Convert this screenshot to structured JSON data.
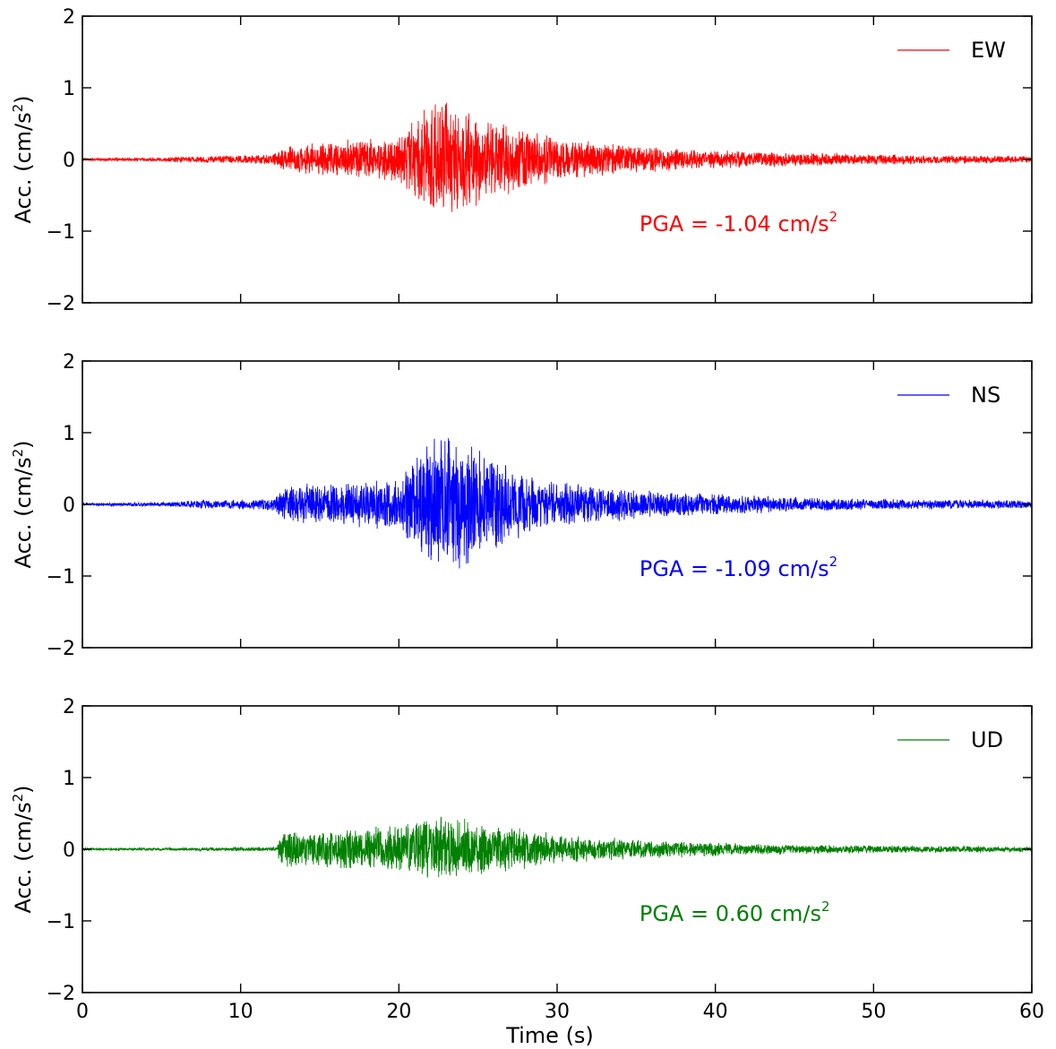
{
  "chart_data": [
    {
      "type": "line",
      "series": [
        {
          "name": "EW",
          "color": "#ff0000",
          "envelope": {
            "t": [
              0,
              5,
              7.5,
              10,
              12,
              13,
              15,
              18,
              20,
              21.5,
              22.5,
              23.5,
              24.5,
              26,
              28,
              30,
              35,
              40,
              45,
              50,
              55,
              60
            ],
            "amp": [
              0.02,
              0.03,
              0.05,
              0.06,
              0.08,
              0.2,
              0.25,
              0.32,
              0.38,
              0.7,
              0.95,
              0.8,
              0.75,
              0.6,
              0.45,
              0.32,
              0.2,
              0.14,
              0.1,
              0.08,
              0.06,
              0.05
            ]
          }
        }
      ],
      "annotation": {
        "text": "PGA = -1.04 cm/s",
        "superscript": "2",
        "color": "#ff0000"
      },
      "ylabel": "Acc. (cm/s",
      "ylabel_sup": "2",
      "ylabel_close": ")",
      "xlim": [
        0,
        60
      ],
      "ylim": [
        -2,
        2
      ],
      "xticks": [
        0,
        10,
        20,
        30,
        40,
        50,
        60
      ],
      "yticks": [
        -2,
        -1,
        0,
        1,
        2
      ],
      "ytick_labels": [
        "−2",
        "−1",
        "0",
        "1",
        "2"
      ],
      "show_xtick_labels": false,
      "legend": "top-right",
      "grid": false
    },
    {
      "type": "line",
      "series": [
        {
          "name": "NS",
          "color": "#0000ff",
          "envelope": {
            "t": [
              0,
              5,
              7.5,
              10,
              12,
              13,
              15,
              18,
              20,
              21,
              22,
              23.5,
              25,
              26.5,
              28,
              30,
              35,
              40,
              45,
              50,
              55,
              60
            ],
            "amp": [
              0.02,
              0.03,
              0.07,
              0.07,
              0.09,
              0.28,
              0.3,
              0.33,
              0.38,
              0.75,
              1.0,
              1.0,
              0.8,
              0.6,
              0.45,
              0.33,
              0.22,
              0.15,
              0.11,
              0.08,
              0.07,
              0.06
            ]
          }
        }
      ],
      "annotation": {
        "text": "PGA = -1.09 cm/s",
        "superscript": "2",
        "color": "#0000ff"
      },
      "ylabel": "Acc. (cm/s",
      "ylabel_sup": "2",
      "ylabel_close": ")",
      "xlim": [
        0,
        60
      ],
      "ylim": [
        -2,
        2
      ],
      "xticks": [
        0,
        10,
        20,
        30,
        40,
        50,
        60
      ],
      "yticks": [
        -2,
        -1,
        0,
        1,
        2
      ],
      "ytick_labels": [
        "−2",
        "−1",
        "0",
        "1",
        "2"
      ],
      "show_xtick_labels": false,
      "legend": "top-right",
      "grid": false
    },
    {
      "type": "line",
      "series": [
        {
          "name": "UD",
          "color": "#008000",
          "envelope": {
            "t": [
              0,
              5,
              10,
              12.3,
              12.5,
              14,
              17,
              20,
              21.5,
              22.5,
              24,
              26,
              28,
              30,
              35,
              40,
              45,
              50,
              55,
              60
            ],
            "amp": [
              0.02,
              0.02,
              0.03,
              0.03,
              0.25,
              0.26,
              0.3,
              0.35,
              0.5,
              0.55,
              0.45,
              0.35,
              0.3,
              0.22,
              0.14,
              0.1,
              0.07,
              0.06,
              0.05,
              0.04
            ]
          }
        }
      ],
      "annotation": {
        "text": "PGA =  0.60 cm/s",
        "superscript": "2",
        "color": "#008000"
      },
      "ylabel": "Acc. (cm/s",
      "ylabel_sup": "2",
      "ylabel_close": ")",
      "xlabel": "Time (s)",
      "xlim": [
        0,
        60
      ],
      "ylim": [
        -2,
        2
      ],
      "xticks": [
        0,
        10,
        20,
        30,
        40,
        50,
        60
      ],
      "xtick_labels": [
        "0",
        "10",
        "20",
        "30",
        "40",
        "50",
        "60"
      ],
      "yticks": [
        -2,
        -1,
        0,
        1,
        2
      ],
      "ytick_labels": [
        "−2",
        "−1",
        "0",
        "1",
        "2"
      ],
      "show_xtick_labels": true,
      "legend": "top-right",
      "grid": false
    }
  ]
}
